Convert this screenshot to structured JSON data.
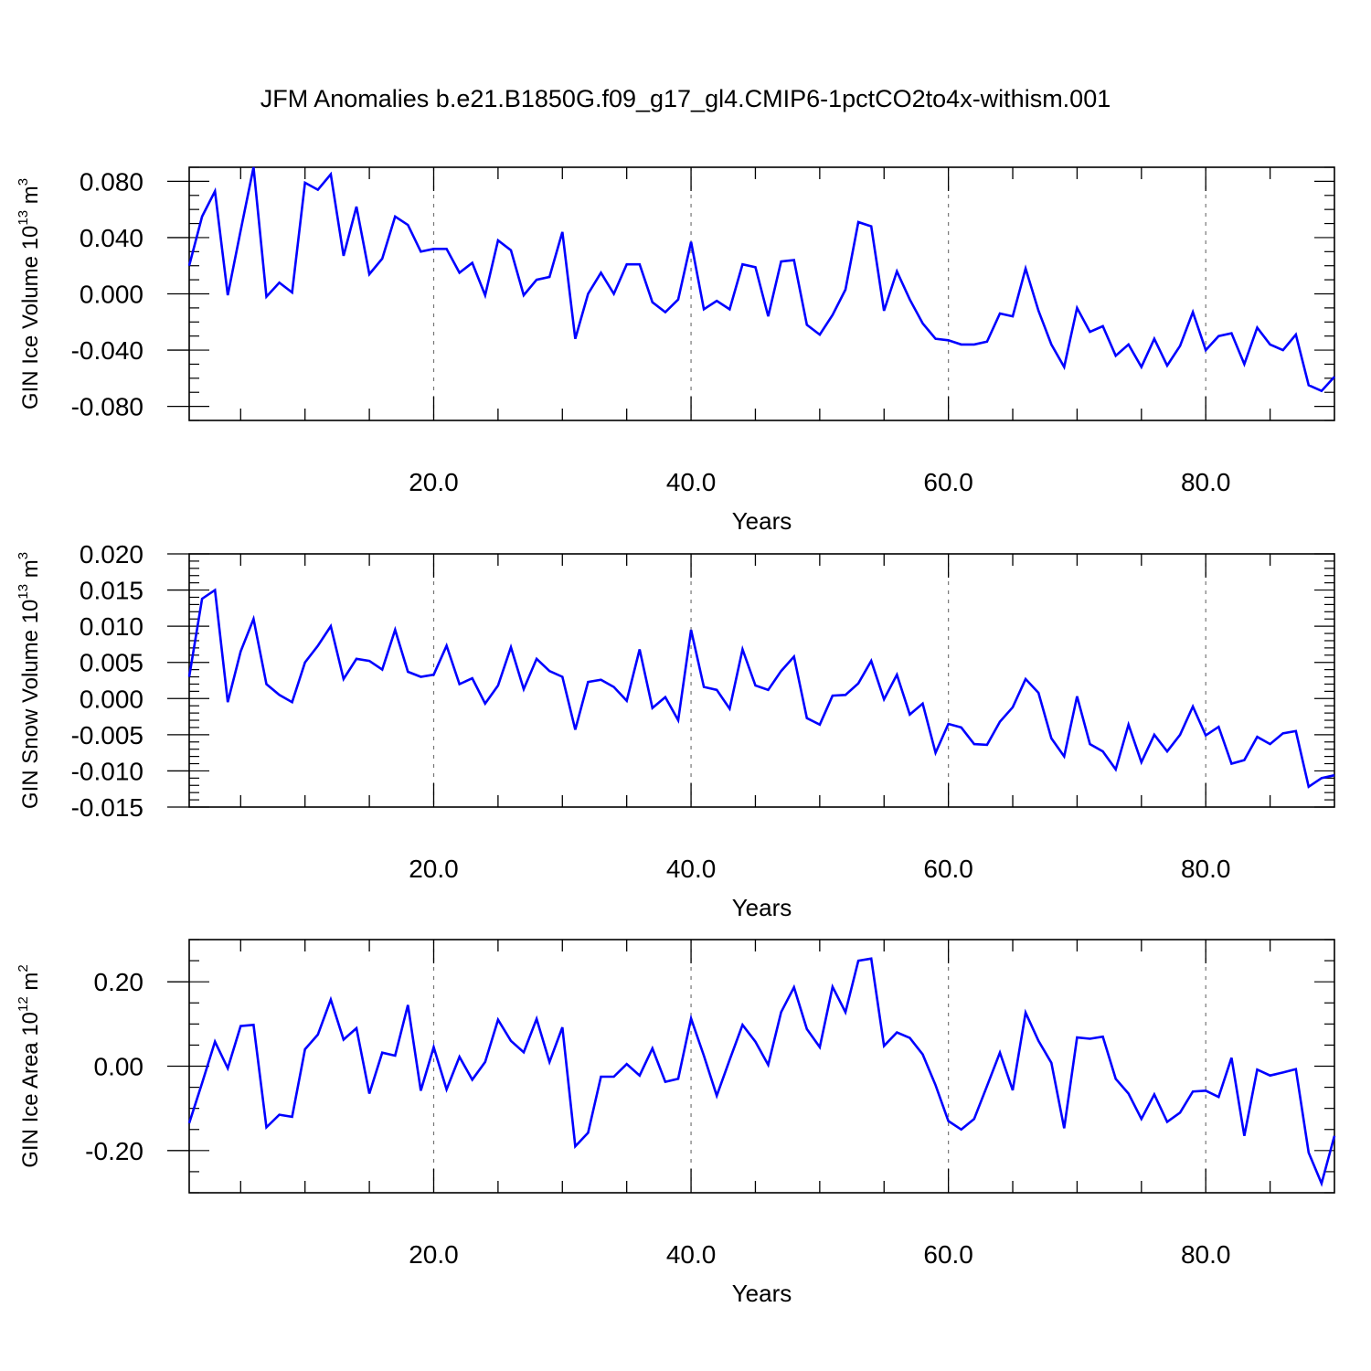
{
  "title": "JFM Anomalies b.e21.B1850G.f09_g17_gl4.CMIP6-1pctCO2to4x-withism.001",
  "chart_data": [
    {
      "type": "line",
      "id": "ice-volume",
      "title": "",
      "xlabel": "Years",
      "ylabel": {
        "text": "GIN Ice Volume 10",
        "sup1": "13",
        "unit": " m",
        "sup2": "3"
      },
      "xlim": [
        1,
        90
      ],
      "ylim": [
        -0.09,
        0.09
      ],
      "x_ticks": [
        20,
        40,
        60,
        80
      ],
      "x_tick_labels": [
        "20.0",
        "40.0",
        "60.0",
        "80.0"
      ],
      "y_ticks": [
        0.08,
        0.04,
        0.0,
        -0.04,
        -0.08
      ],
      "y_tick_labels": [
        "0.080",
        "0.040",
        "0.000",
        "-0.040",
        "-0.080"
      ],
      "y_minor_step": 0.01,
      "grid": "dashed vertical at major x ticks",
      "color": "#0000ff",
      "series": [
        {
          "x_start": 1,
          "x_step": 1,
          "values": [
            0.02,
            0.055,
            0.073,
            -0.001,
            0.045,
            0.09,
            -0.002,
            0.008,
            0.001,
            0.079,
            0.074,
            0.085,
            0.027,
            0.062,
            0.014,
            0.025,
            0.055,
            0.049,
            0.03,
            0.032,
            0.032,
            0.015,
            0.022,
            -0.001,
            0.038,
            0.031,
            -0.001,
            0.01,
            0.012,
            0.044,
            -0.032,
            0.0,
            0.015,
            0.0,
            0.021,
            0.021,
            -0.006,
            -0.013,
            -0.004,
            0.037,
            -0.011,
            -0.005,
            -0.011,
            0.021,
            0.019,
            -0.016,
            0.023,
            0.024,
            -0.022,
            -0.029,
            -0.015,
            0.003,
            0.051,
            0.048,
            -0.012,
            0.016,
            -0.004,
            -0.021,
            -0.032,
            -0.033,
            -0.036,
            -0.036,
            -0.034,
            -0.014,
            -0.016,
            0.018,
            -0.012,
            -0.036,
            -0.052,
            -0.01,
            -0.027,
            -0.023,
            -0.044,
            -0.036,
            -0.052,
            -0.032,
            -0.051,
            -0.037,
            -0.013,
            -0.04,
            -0.03,
            -0.028,
            -0.05,
            -0.024,
            -0.036,
            -0.04,
            -0.029,
            -0.065,
            -0.069,
            -0.059
          ]
        }
      ]
    },
    {
      "type": "line",
      "id": "snow-volume",
      "title": "",
      "xlabel": "Years",
      "ylabel": {
        "text": "GIN Snow Volume 10",
        "sup1": "13",
        "unit": " m",
        "sup2": "3"
      },
      "xlim": [
        1,
        90
      ],
      "ylim": [
        -0.015,
        0.02
      ],
      "x_ticks": [
        20,
        40,
        60,
        80
      ],
      "x_tick_labels": [
        "20.0",
        "40.0",
        "60.0",
        "80.0"
      ],
      "y_ticks": [
        0.02,
        0.015,
        0.01,
        0.005,
        0.0,
        -0.005,
        -0.01,
        -0.015
      ],
      "y_tick_labels": [
        "0.020",
        "0.015",
        "0.010",
        "0.005",
        "0.000",
        "-0.005",
        "-0.010",
        "-0.015"
      ],
      "y_minor_step": 0.001,
      "grid": "dashed vertical at major x ticks",
      "color": "#0000ff",
      "series": [
        {
          "x_start": 1,
          "x_step": 1,
          "values": [
            0.003,
            0.0138,
            0.015,
            -0.0005,
            0.0065,
            0.011,
            0.002,
            0.0005,
            -0.0005,
            0.005,
            0.0073,
            0.01,
            0.0027,
            0.0055,
            0.0052,
            0.004,
            0.0095,
            0.0037,
            0.003,
            0.0033,
            0.0073,
            0.002,
            0.0028,
            -0.0007,
            0.0018,
            0.0071,
            0.0013,
            0.0055,
            0.0038,
            0.003,
            -0.0043,
            0.0023,
            0.0026,
            0.0016,
            -0.0003,
            0.0068,
            -0.0013,
            0.0002,
            -0.003,
            0.0095,
            0.0016,
            0.0012,
            -0.0014,
            0.0068,
            0.0018,
            0.0012,
            0.0038,
            0.0058,
            -0.0027,
            -0.0036,
            0.0004,
            0.0005,
            0.0021,
            0.0052,
            -0.0001,
            0.0033,
            -0.0022,
            -0.0007,
            -0.0075,
            -0.0035,
            -0.004,
            -0.0063,
            -0.0064,
            -0.0032,
            -0.0012,
            0.0027,
            0.0008,
            -0.0055,
            -0.008,
            0.0003,
            -0.0063,
            -0.0073,
            -0.0098,
            -0.0036,
            -0.0088,
            -0.005,
            -0.0073,
            -0.005,
            -0.0011,
            -0.0051,
            -0.0039,
            -0.009,
            -0.0085,
            -0.0053,
            -0.0063,
            -0.0048,
            -0.0045,
            -0.0122,
            -0.011,
            -0.0106
          ]
        }
      ]
    },
    {
      "type": "line",
      "id": "ice-area",
      "title": "",
      "xlabel": "Years",
      "ylabel": {
        "text": "GIN Ice Area 10",
        "sup1": "12",
        "unit": " m",
        "sup2": "2"
      },
      "xlim": [
        1,
        90
      ],
      "ylim": [
        -0.3,
        0.3
      ],
      "x_ticks": [
        20,
        40,
        60,
        80
      ],
      "x_tick_labels": [
        "20.0",
        "40.0",
        "60.0",
        "80.0"
      ],
      "y_ticks": [
        0.2,
        0.0,
        -0.2
      ],
      "y_tick_labels": [
        "0.20",
        "0.00",
        "-0.20"
      ],
      "y_minor_step": 0.05,
      "grid": "dashed vertical at major x ticks",
      "color": "#0000ff",
      "series": [
        {
          "x_start": 1,
          "x_step": 1,
          "values": [
            -0.135,
            -0.04,
            0.058,
            -0.005,
            0.095,
            0.098,
            -0.145,
            -0.115,
            -0.12,
            0.04,
            0.075,
            0.158,
            0.063,
            0.09,
            -0.065,
            0.032,
            0.025,
            0.145,
            -0.058,
            0.045,
            -0.055,
            0.022,
            -0.032,
            0.01,
            0.11,
            0.06,
            0.033,
            0.112,
            0.01,
            0.092,
            -0.19,
            -0.158,
            -0.025,
            -0.025,
            0.005,
            -0.022,
            0.042,
            -0.037,
            -0.03,
            0.113,
            0.025,
            -0.07,
            0.015,
            0.098,
            0.058,
            0.003,
            0.128,
            0.187,
            0.088,
            0.045,
            0.188,
            0.128,
            0.25,
            0.255,
            0.048,
            0.08,
            0.067,
            0.028,
            -0.045,
            -0.13,
            -0.15,
            -0.125,
            -0.047,
            0.032,
            -0.057,
            0.127,
            0.06,
            0.008,
            -0.147,
            0.068,
            0.065,
            0.07,
            -0.03,
            -0.065,
            -0.125,
            -0.067,
            -0.132,
            -0.11,
            -0.06,
            -0.058,
            -0.073,
            0.02,
            -0.165,
            -0.008,
            -0.022,
            -0.015,
            -0.007,
            -0.205,
            -0.278,
            -0.165
          ]
        }
      ]
    }
  ]
}
